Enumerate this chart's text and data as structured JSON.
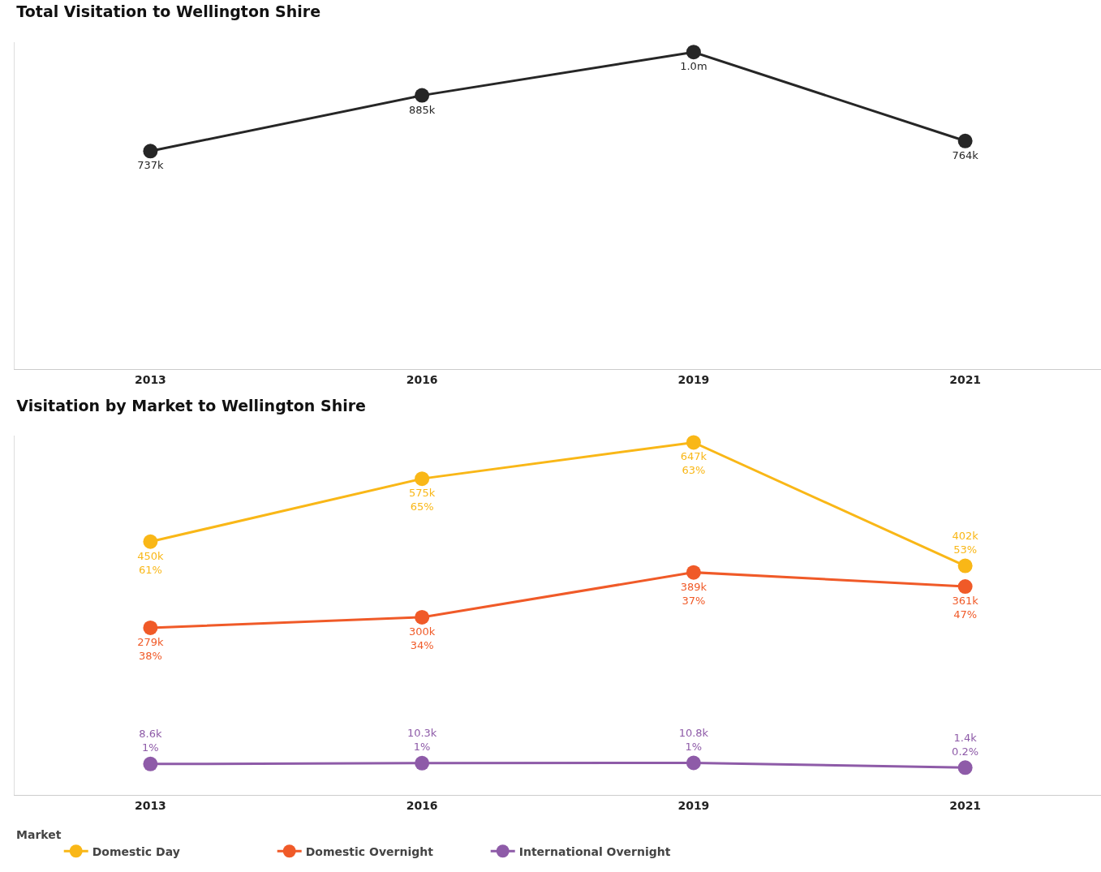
{
  "chart_data": [
    {
      "type": "line",
      "title": "Total Visitation to Wellington Shire",
      "relative": false,
      "categories": [
        "2013",
        "2016",
        "2019",
        "2021"
      ],
      "series": [
        {
          "color": "#262626",
          "values": [
            737000,
            885000,
            1000000,
            764000
          ],
          "value_labels": [
            "737k",
            "885k",
            "1.0m",
            "764k"
          ]
        }
      ],
      "marker": "circle",
      "line_style": "solid",
      "grid": false,
      "legend": false,
      "tick_labels": "x"
    },
    {
      "type": "line",
      "title": "Visitation by Market to Wellington Shire",
      "legend_title": "Market",
      "categories": [
        "2013",
        "2016",
        "2019",
        "2021"
      ],
      "series": [
        {
          "name": "Domestic Day",
          "color": "#f9b717",
          "values": [
            450000,
            575000,
            647000,
            402000
          ],
          "value_labels": [
            "450k\n61%",
            "575k\n65%",
            "647k\n63%",
            "402k\n53%"
          ]
        },
        {
          "name": "Domestic Overnight",
          "color": "#f05a28",
          "values": [
            279000,
            300000,
            389000,
            361000
          ],
          "value_labels": [
            "279k\n38%",
            "300k\n34%",
            "389k\n37%",
            "361k\n47%"
          ]
        },
        {
          "name": "International Overnight",
          "color": "#8e5ba8",
          "values": [
            8600,
            10300,
            10800,
            1400
          ],
          "value_labels": [
            "8.6k\n1%",
            "10.3k\n1%",
            "10.8k\n1%",
            "1.4k\n0.2%"
          ]
        }
      ],
      "marker": "circle",
      "line_style": "solid",
      "grid": false,
      "legend": "bottom left",
      "tick_labels": "x"
    }
  ]
}
